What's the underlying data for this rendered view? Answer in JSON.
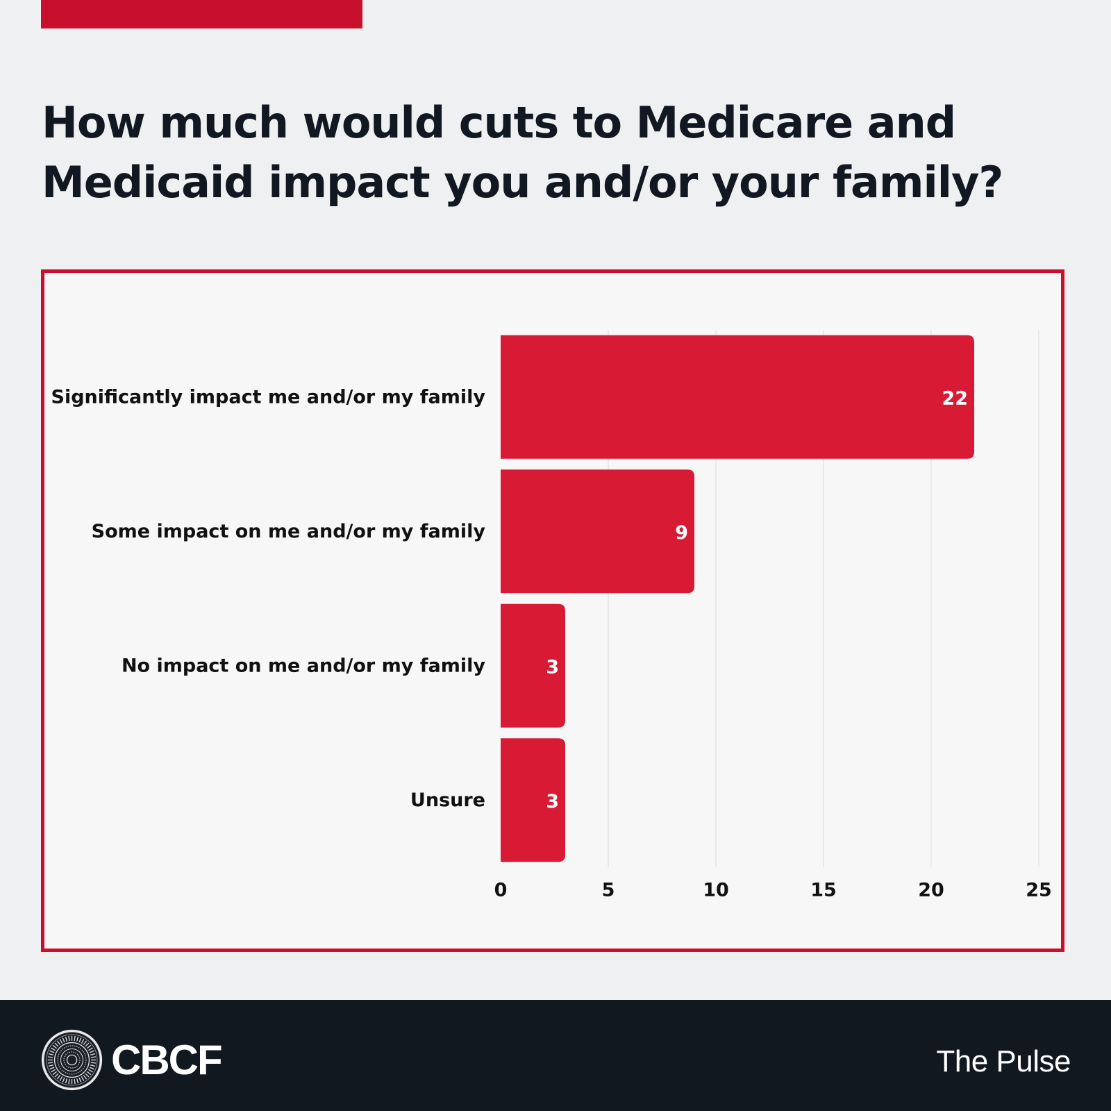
{
  "page": {
    "title": "How much would cuts to Medicare and Medicaid impact you and/or your family?",
    "accent_color": "#c8102e",
    "bar_color": "#d91a35",
    "footer": {
      "brand": "CBCF",
      "logo_icon": "cbcf-seal-icon",
      "series_name": "The Pulse"
    }
  },
  "chart_data": {
    "type": "bar",
    "orientation": "horizontal",
    "title": "How much would cuts to Medicare and Medicaid impact you and/or your family?",
    "xlabel": "",
    "ylabel": "",
    "categories": [
      "Significantly impact me and/or my family",
      "Some impact on me and/or my family",
      "No impact on me and/or my family",
      "Unsure"
    ],
    "values": [
      22,
      9,
      3,
      3
    ],
    "data_labels": [
      "22",
      "9",
      "3",
      "3"
    ],
    "xlim": [
      0,
      25
    ],
    "xticks": [
      0,
      5,
      10,
      15,
      20,
      25
    ],
    "xtick_labels": [
      "0",
      "5",
      "10",
      "15",
      "20",
      "25"
    ],
    "grid": "vertical",
    "legend": "none"
  }
}
